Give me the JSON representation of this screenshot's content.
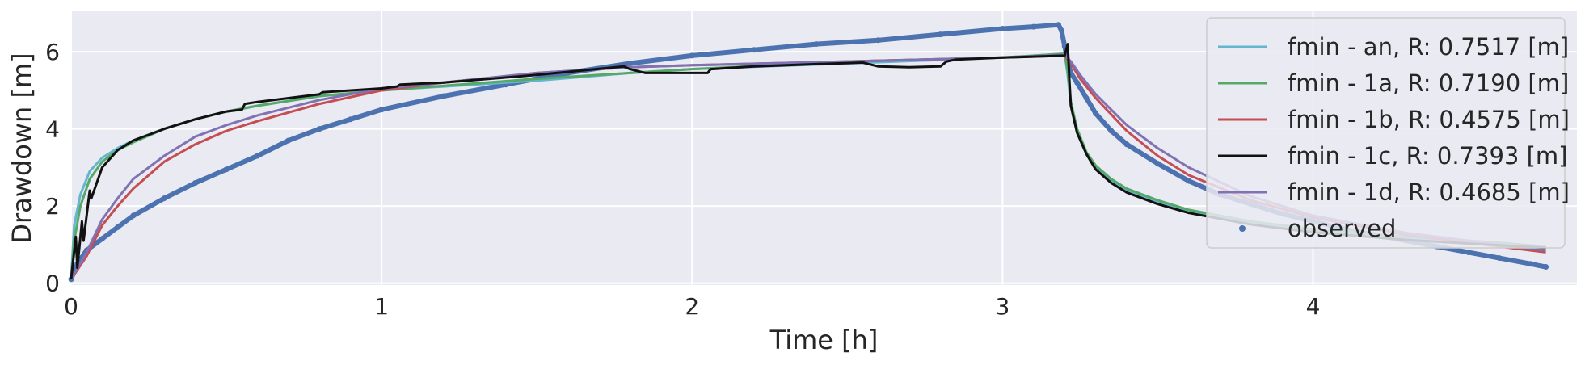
{
  "chart_data": {
    "type": "line",
    "xlabel": "Time [h]",
    "ylabel": "Drawdown [m]",
    "xlim": [
      0,
      4.85
    ],
    "ylim": [
      -0.05,
      7.05
    ],
    "xticks": [
      0,
      1,
      2,
      3,
      4
    ],
    "yticks": [
      0,
      2,
      4,
      6
    ],
    "grid": true,
    "legend_position": "top-right",
    "series": [
      {
        "name": "fmin - an, R: 0.7517 [m]",
        "color": "#64b5cd",
        "style": "line",
        "x": [
          0,
          0.01,
          0.03,
          0.06,
          0.1,
          0.15,
          0.2,
          0.3,
          0.4,
          0.5,
          0.6,
          0.8,
          1.0,
          1.2,
          1.5,
          1.8,
          2.0,
          2.5,
          3.0,
          3.2,
          3.21,
          3.22,
          3.24,
          3.27,
          3.3,
          3.35,
          3.4,
          3.5,
          3.6,
          3.8,
          4.0,
          4.3,
          4.6,
          4.75
        ],
        "y": [
          0.1,
          1.5,
          2.3,
          2.9,
          3.25,
          3.5,
          3.7,
          4.0,
          4.25,
          4.45,
          4.6,
          4.85,
          5.0,
          5.1,
          5.25,
          5.45,
          5.55,
          5.7,
          5.85,
          5.95,
          5.4,
          4.6,
          3.9,
          3.35,
          3.0,
          2.65,
          2.4,
          2.1,
          1.85,
          1.55,
          1.35,
          1.15,
          1.0,
          0.95
        ]
      },
      {
        "name": "fmin - 1a, R: 0.7190 [m]",
        "color": "#55a868",
        "style": "line",
        "x": [
          0,
          0.01,
          0.03,
          0.06,
          0.1,
          0.15,
          0.2,
          0.3,
          0.4,
          0.5,
          0.6,
          0.8,
          1.0,
          1.2,
          1.5,
          1.8,
          2.0,
          2.5,
          3.0,
          3.2,
          3.21,
          3.22,
          3.24,
          3.27,
          3.3,
          3.35,
          3.4,
          3.5,
          3.6,
          3.8,
          4.0,
          4.3,
          4.6,
          4.75
        ],
        "y": [
          0.1,
          1.1,
          2.0,
          2.7,
          3.15,
          3.45,
          3.65,
          4.0,
          4.25,
          4.45,
          4.6,
          4.85,
          5.0,
          5.12,
          5.3,
          5.45,
          5.55,
          5.75,
          5.85,
          5.95,
          5.5,
          4.7,
          4.0,
          3.4,
          3.05,
          2.7,
          2.45,
          2.15,
          1.9,
          1.6,
          1.4,
          1.2,
          1.05,
          0.95
        ]
      },
      {
        "name": "fmin - 1b, R: 0.4575 [m]",
        "color": "#c44e52",
        "style": "line",
        "x": [
          0,
          0.05,
          0.1,
          0.15,
          0.2,
          0.3,
          0.4,
          0.5,
          0.6,
          0.8,
          1.0,
          1.2,
          1.5,
          1.8,
          2.0,
          2.5,
          3.0,
          3.2,
          3.22,
          3.25,
          3.3,
          3.4,
          3.5,
          3.6,
          3.8,
          4.0,
          4.3,
          4.6,
          4.75
        ],
        "y": [
          0.1,
          0.7,
          1.5,
          2.0,
          2.45,
          3.15,
          3.6,
          3.95,
          4.2,
          4.65,
          5.0,
          5.2,
          5.45,
          5.6,
          5.65,
          5.75,
          5.85,
          5.9,
          5.7,
          5.3,
          4.8,
          3.95,
          3.3,
          2.8,
          2.15,
          1.7,
          1.25,
          0.95,
          0.8
        ]
      },
      {
        "name": "fmin - 1c, R: 0.7393 [m]",
        "color": "#111111",
        "style": "line",
        "x": [
          0,
          0.015,
          0.02,
          0.035,
          0.04,
          0.06,
          0.065,
          0.1,
          0.15,
          0.2,
          0.3,
          0.4,
          0.5,
          0.55,
          0.56,
          0.6,
          0.8,
          0.81,
          1.0,
          1.05,
          1.06,
          1.2,
          1.5,
          1.78,
          1.8,
          1.85,
          2.0,
          2.05,
          2.06,
          2.2,
          2.4,
          2.55,
          2.6,
          2.7,
          2.8,
          2.82,
          2.85,
          3.0,
          3.2,
          3.21,
          3.215,
          3.22,
          3.24,
          3.27,
          3.3,
          3.35,
          3.4,
          3.5,
          3.6,
          3.8,
          4.0,
          4.3,
          4.6,
          4.75
        ],
        "y": [
          0.1,
          1.2,
          0.4,
          1.6,
          1.1,
          2.4,
          2.2,
          3.0,
          3.45,
          3.7,
          4.0,
          4.25,
          4.45,
          4.5,
          4.65,
          4.7,
          4.9,
          4.95,
          5.05,
          5.1,
          5.15,
          5.2,
          5.4,
          5.62,
          5.55,
          5.45,
          5.45,
          5.45,
          5.55,
          5.62,
          5.68,
          5.72,
          5.62,
          5.6,
          5.62,
          5.75,
          5.8,
          5.85,
          5.9,
          6.2,
          5.3,
          4.6,
          3.9,
          3.35,
          2.95,
          2.6,
          2.35,
          2.05,
          1.82,
          1.52,
          1.32,
          1.12,
          0.98,
          0.92
        ]
      },
      {
        "name": "fmin - 1d, R: 0.4685 [m]",
        "color": "#8172b3",
        "style": "line",
        "x": [
          0,
          0.05,
          0.1,
          0.15,
          0.2,
          0.3,
          0.4,
          0.5,
          0.6,
          0.8,
          1.0,
          1.2,
          1.5,
          1.8,
          2.0,
          2.5,
          3.0,
          3.2,
          3.22,
          3.25,
          3.3,
          3.4,
          3.5,
          3.6,
          3.8,
          4.0,
          4.3,
          4.6,
          4.75
        ],
        "y": [
          0.1,
          0.8,
          1.65,
          2.2,
          2.7,
          3.3,
          3.8,
          4.1,
          4.35,
          4.75,
          5.05,
          5.2,
          5.45,
          5.6,
          5.65,
          5.75,
          5.85,
          5.92,
          5.75,
          5.4,
          4.9,
          4.1,
          3.5,
          3.0,
          2.25,
          1.75,
          1.3,
          1.0,
          0.85
        ]
      },
      {
        "name": "observed",
        "color": "#4c72b0",
        "style": "points",
        "x": [
          0,
          0.02,
          0.05,
          0.1,
          0.15,
          0.2,
          0.3,
          0.4,
          0.5,
          0.6,
          0.7,
          0.8,
          0.9,
          1.0,
          1.2,
          1.4,
          1.6,
          1.8,
          2.0,
          2.2,
          2.4,
          2.6,
          2.8,
          3.0,
          3.1,
          3.18,
          3.19,
          3.2,
          3.21,
          3.22,
          3.24,
          3.27,
          3.3,
          3.35,
          3.4,
          3.5,
          3.6,
          3.7,
          3.8,
          3.9,
          4.0,
          4.1,
          4.2,
          4.3,
          4.4,
          4.5,
          4.6,
          4.7,
          4.75
        ],
        "y": [
          0.1,
          0.5,
          0.85,
          1.15,
          1.45,
          1.75,
          2.2,
          2.6,
          2.95,
          3.3,
          3.7,
          4.0,
          4.25,
          4.5,
          4.85,
          5.15,
          5.45,
          5.7,
          5.9,
          6.05,
          6.2,
          6.3,
          6.45,
          6.6,
          6.65,
          6.7,
          6.55,
          6.15,
          5.75,
          5.45,
          5.2,
          4.8,
          4.4,
          3.95,
          3.6,
          3.1,
          2.65,
          2.3,
          2.05,
          1.8,
          1.6,
          1.4,
          1.25,
          1.1,
          0.95,
          0.8,
          0.65,
          0.5,
          0.42
        ]
      }
    ]
  }
}
